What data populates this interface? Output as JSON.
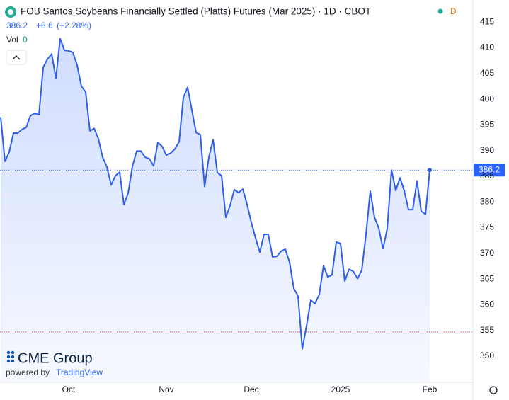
{
  "header": {
    "title": "FOB Santos Soybeans Financially Settled (Platts) Futures (Mar 2025) · 1D · CBOT",
    "change": "+8.6",
    "change_pct": "(+2.28%)",
    "vol_label": "Vol",
    "vol_value": "0",
    "status": "D",
    "logo_name": "CME Group",
    "powered_by": "powered by",
    "powered_name": "TradingView"
  },
  "chart_data": {
    "type": "area",
    "categories": [
      null,
      null,
      null,
      null,
      null,
      null,
      null,
      null,
      null,
      null,
      null,
      null,
      null,
      null,
      null,
      null,
      "Oct",
      null,
      null,
      null,
      null,
      null,
      null,
      null,
      null,
      null,
      null,
      null,
      null,
      null,
      null,
      null,
      null,
      null,
      null,
      null,
      null,
      null,
      null,
      "Nov",
      null,
      null,
      null,
      null,
      null,
      null,
      null,
      null,
      null,
      null,
      null,
      null,
      null,
      null,
      null,
      null,
      null,
      null,
      null,
      "Dec",
      null,
      null,
      null,
      null,
      null,
      null,
      null,
      null,
      null,
      null,
      null,
      null,
      null,
      null,
      null,
      null,
      null,
      null,
      null,
      null,
      "2025",
      null,
      null,
      null,
      null,
      null,
      null,
      null,
      null,
      null,
      null,
      null,
      null,
      null,
      null,
      null,
      null,
      null,
      null,
      null,
      null,
      "Feb"
    ],
    "series": [
      {
        "color": "#2f5ee8",
        "values": [
          396.5,
          387.9,
          389.7,
          393.4,
          393.4,
          394.1,
          394.5,
          396.8,
          397.2,
          397.0,
          406.2,
          407.8,
          408.8,
          404.1,
          411.8,
          409.5,
          409.4,
          409.1,
          406.6,
          402.5,
          401.4,
          393.8,
          394.3,
          392.3,
          388.7,
          386.8,
          383.3,
          385.1,
          385.8,
          379.5,
          381.7,
          386.9,
          389.9,
          389.9,
          388.7,
          388.4,
          387.0,
          391.6,
          390.8,
          389.1,
          389.5,
          390.3,
          391.7,
          400.3,
          402.3,
          397.9,
          393.5,
          393.1,
          383.0,
          388.7,
          392.1,
          385.7,
          385.1,
          377.0,
          379.3,
          382.4,
          381.8,
          382.5,
          379.5,
          376.0,
          373.0,
          370.2,
          373.7,
          373.7,
          369.3,
          369.4,
          370.4,
          370.8,
          368.3,
          363.2,
          361.7,
          351.4,
          355.9,
          360.9,
          360.2,
          362.0,
          367.6,
          365.4,
          365.8,
          372.2,
          371.9,
          364.6,
          366.9,
          366.5,
          365.1,
          366.7,
          373.7,
          382.1,
          377.0,
          374.9,
          370.9,
          374.8,
          386.2,
          382.2,
          384.7,
          382.2,
          378.5,
          378.5,
          384.1,
          378.2,
          377.6,
          386.2
        ]
      }
    ],
    "ylim": [
      344.9,
      419.3
    ],
    "yticks": [
      350,
      355,
      360,
      365,
      370,
      375,
      380,
      385,
      390,
      395,
      400,
      405,
      410,
      415
    ],
    "reference_lines": [
      {
        "value": 386.2,
        "color": "#2962ff"
      },
      {
        "value": 354.7,
        "color": "#f23645"
      }
    ],
    "grid": false
  }
}
